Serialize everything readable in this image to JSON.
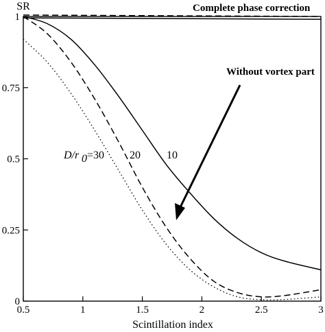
{
  "chart_data": {
    "type": "line",
    "xlabel": "Scintillation index",
    "ylabel": "SR",
    "xlim": [
      0.5,
      3
    ],
    "ylim": [
      0,
      1
    ],
    "grid": false,
    "x_ticks": [
      "0.5",
      "1",
      "1.5",
      "2",
      "2.5",
      "3"
    ],
    "y_ticks": [
      "0",
      "0.25",
      "0.5",
      "0.75",
      "1"
    ],
    "annotations": {
      "top": "Complete phase correction",
      "arrow": "Without vortex part",
      "d_over_r0_prefix": "D/r",
      "d_over_r0_sub": "0",
      "d_over_r0_eq": "=30",
      "label_20": "20",
      "label_10": "10"
    },
    "series": [
      {
        "style": "solid",
        "x": [
          0.5,
          0.7,
          0.9,
          1.1,
          1.3,
          1.5,
          1.7,
          1.9,
          2.1,
          2.3,
          2.5,
          2.7,
          3.0
        ],
        "y": [
          1.0,
          0.975,
          0.92,
          0.83,
          0.72,
          0.6,
          0.48,
          0.38,
          0.29,
          0.22,
          0.17,
          0.14,
          0.11
        ]
      },
      {
        "style": "dashed",
        "x": [
          0.5,
          0.7,
          0.9,
          1.1,
          1.3,
          1.5,
          1.7,
          1.9,
          2.1,
          2.3,
          2.5,
          2.7,
          3.0
        ],
        "y": [
          1.0,
          0.94,
          0.84,
          0.71,
          0.56,
          0.4,
          0.26,
          0.15,
          0.07,
          0.03,
          0.015,
          0.02,
          0.04
        ]
      },
      {
        "style": "dotted",
        "x": [
          0.5,
          0.7,
          0.9,
          1.1,
          1.3,
          1.5,
          1.7,
          1.9,
          2.1,
          2.3,
          2.5,
          2.7,
          3.0
        ],
        "y": [
          0.92,
          0.84,
          0.73,
          0.6,
          0.46,
          0.32,
          0.2,
          0.11,
          0.05,
          0.015,
          0.005,
          0.006,
          0.015
        ]
      },
      {
        "style": "solid",
        "x": [
          0.5,
          3.0
        ],
        "y": [
          0.995,
          0.99
        ]
      },
      {
        "style": "dashed",
        "x": [
          0.5,
          3.0
        ],
        "y": [
          1.005,
          1.0
        ]
      }
    ]
  }
}
